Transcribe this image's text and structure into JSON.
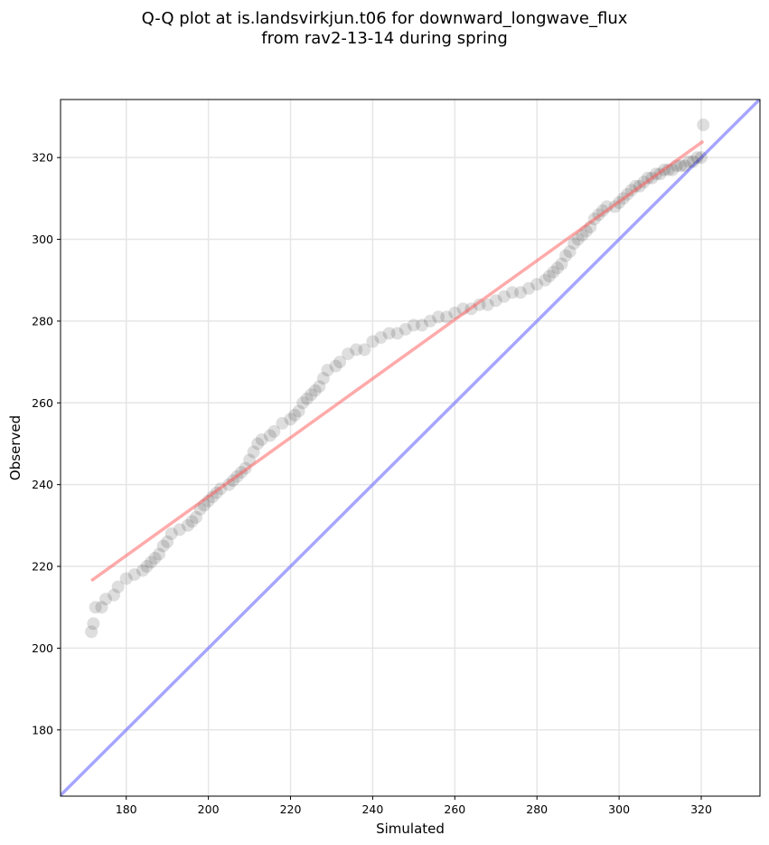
{
  "chart_data": {
    "type": "scatter",
    "title_line1": "Q-Q plot at is.landsvirkjun.t06 for downward_longwave_flux",
    "title_line2": "from rav2-13-14 during spring",
    "xlabel": "Simulated",
    "ylabel": "Observed",
    "xlim": [
      164,
      334.3
    ],
    "ylim": [
      163.8,
      334.2
    ],
    "xticks": [
      180,
      200,
      220,
      240,
      260,
      280,
      300,
      320
    ],
    "yticks": [
      180,
      200,
      220,
      240,
      260,
      280,
      300,
      320
    ],
    "grid": true,
    "colors": {
      "points": "#000000",
      "fit_line": "#ff5555",
      "identity_line": "#7777ff",
      "grid": "#e6e6e6"
    },
    "fit_line": {
      "x": [
        171.5,
        320.5
      ],
      "y": [
        216.5,
        324
      ]
    },
    "identity_line": {
      "x": [
        164,
        334.3
      ],
      "y": [
        164,
        334.3
      ]
    },
    "points": [
      [
        171.5,
        204
      ],
      [
        172,
        206
      ],
      [
        172.5,
        210
      ],
      [
        174,
        210
      ],
      [
        175,
        212
      ],
      [
        177,
        213
      ],
      [
        178,
        215
      ],
      [
        180,
        217
      ],
      [
        182,
        218
      ],
      [
        184,
        219
      ],
      [
        185,
        220
      ],
      [
        186,
        221
      ],
      [
        187,
        222
      ],
      [
        188,
        223
      ],
      [
        189,
        225
      ],
      [
        190,
        226
      ],
      [
        191,
        228
      ],
      [
        193,
        229
      ],
      [
        195,
        230
      ],
      [
        196,
        231
      ],
      [
        197,
        232
      ],
      [
        198,
        234
      ],
      [
        199,
        235
      ],
      [
        200,
        236
      ],
      [
        201,
        237
      ],
      [
        202,
        238
      ],
      [
        203,
        239
      ],
      [
        205,
        240
      ],
      [
        206,
        241
      ],
      [
        207,
        242
      ],
      [
        208,
        243
      ],
      [
        209,
        244
      ],
      [
        210,
        246
      ],
      [
        211,
        248
      ],
      [
        212,
        250
      ],
      [
        213,
        251
      ],
      [
        215,
        252
      ],
      [
        216,
        253
      ],
      [
        218,
        255
      ],
      [
        220,
        256
      ],
      [
        221,
        257
      ],
      [
        222,
        258
      ],
      [
        223,
        260
      ],
      [
        224,
        261
      ],
      [
        225,
        262
      ],
      [
        226,
        263
      ],
      [
        227,
        264
      ],
      [
        228,
        266
      ],
      [
        229,
        268
      ],
      [
        231,
        269
      ],
      [
        232,
        270
      ],
      [
        234,
        272
      ],
      [
        236,
        273
      ],
      [
        238,
        273
      ],
      [
        240,
        275
      ],
      [
        242,
        276
      ],
      [
        244,
        277
      ],
      [
        246,
        277
      ],
      [
        248,
        278
      ],
      [
        250,
        279
      ],
      [
        252,
        279
      ],
      [
        254,
        280
      ],
      [
        256,
        281
      ],
      [
        258,
        281
      ],
      [
        260,
        282
      ],
      [
        262,
        283
      ],
      [
        264,
        283
      ],
      [
        266,
        284
      ],
      [
        268,
        284
      ],
      [
        270,
        285
      ],
      [
        272,
        286
      ],
      [
        274,
        287
      ],
      [
        276,
        287
      ],
      [
        278,
        288
      ],
      [
        280,
        289
      ],
      [
        282,
        290
      ],
      [
        283,
        291
      ],
      [
        284,
        292
      ],
      [
        285,
        293
      ],
      [
        286,
        294
      ],
      [
        287,
        296
      ],
      [
        288,
        297
      ],
      [
        289,
        299
      ],
      [
        290,
        300
      ],
      [
        291,
        301
      ],
      [
        292,
        302
      ],
      [
        293,
        303
      ],
      [
        294,
        305
      ],
      [
        295,
        306
      ],
      [
        296,
        307
      ],
      [
        297,
        308
      ],
      [
        299,
        308
      ],
      [
        300,
        309
      ],
      [
        301,
        310
      ],
      [
        302,
        311
      ],
      [
        303,
        312
      ],
      [
        304,
        313
      ],
      [
        305,
        313
      ],
      [
        306,
        314
      ],
      [
        307,
        315
      ],
      [
        308,
        315
      ],
      [
        309,
        316
      ],
      [
        310,
        316
      ],
      [
        311,
        317
      ],
      [
        312,
        317
      ],
      [
        313,
        317
      ],
      [
        314,
        318
      ],
      [
        315,
        318
      ],
      [
        316,
        318
      ],
      [
        317,
        319
      ],
      [
        318,
        319
      ],
      [
        319,
        320
      ],
      [
        320,
        320
      ],
      [
        320.5,
        328
      ]
    ]
  }
}
